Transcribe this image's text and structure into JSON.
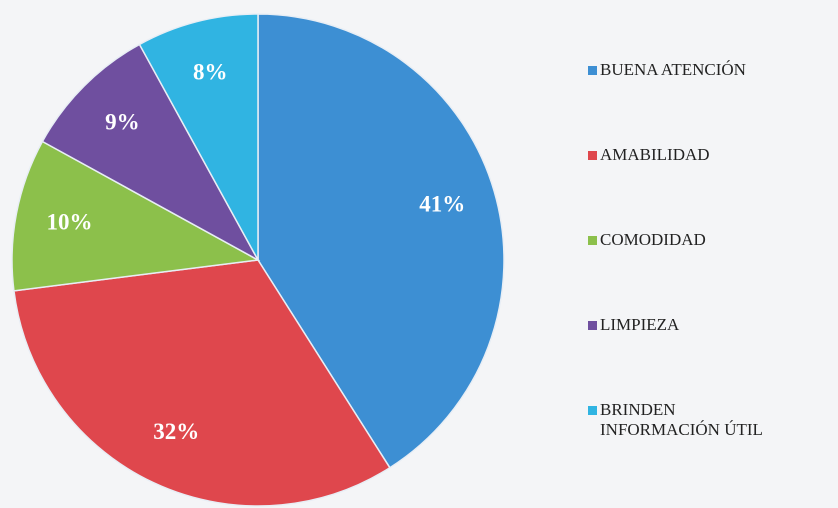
{
  "chart_data": {
    "type": "pie",
    "categories": [
      "BUENA ATENCIÓN",
      "AMABILIDAD",
      "COMODIDAD",
      "LIMPIEZA",
      "BRINDEN INFORMACIÓN ÚTIL"
    ],
    "values": [
      41,
      32,
      10,
      9,
      8
    ],
    "value_labels": [
      "41%",
      "32%",
      "10%",
      "9%",
      "8%"
    ],
    "colors": [
      "#3d8fd3",
      "#df474d",
      "#8cc04b",
      "#6f4f9f",
      "#30b4e2"
    ]
  }
}
